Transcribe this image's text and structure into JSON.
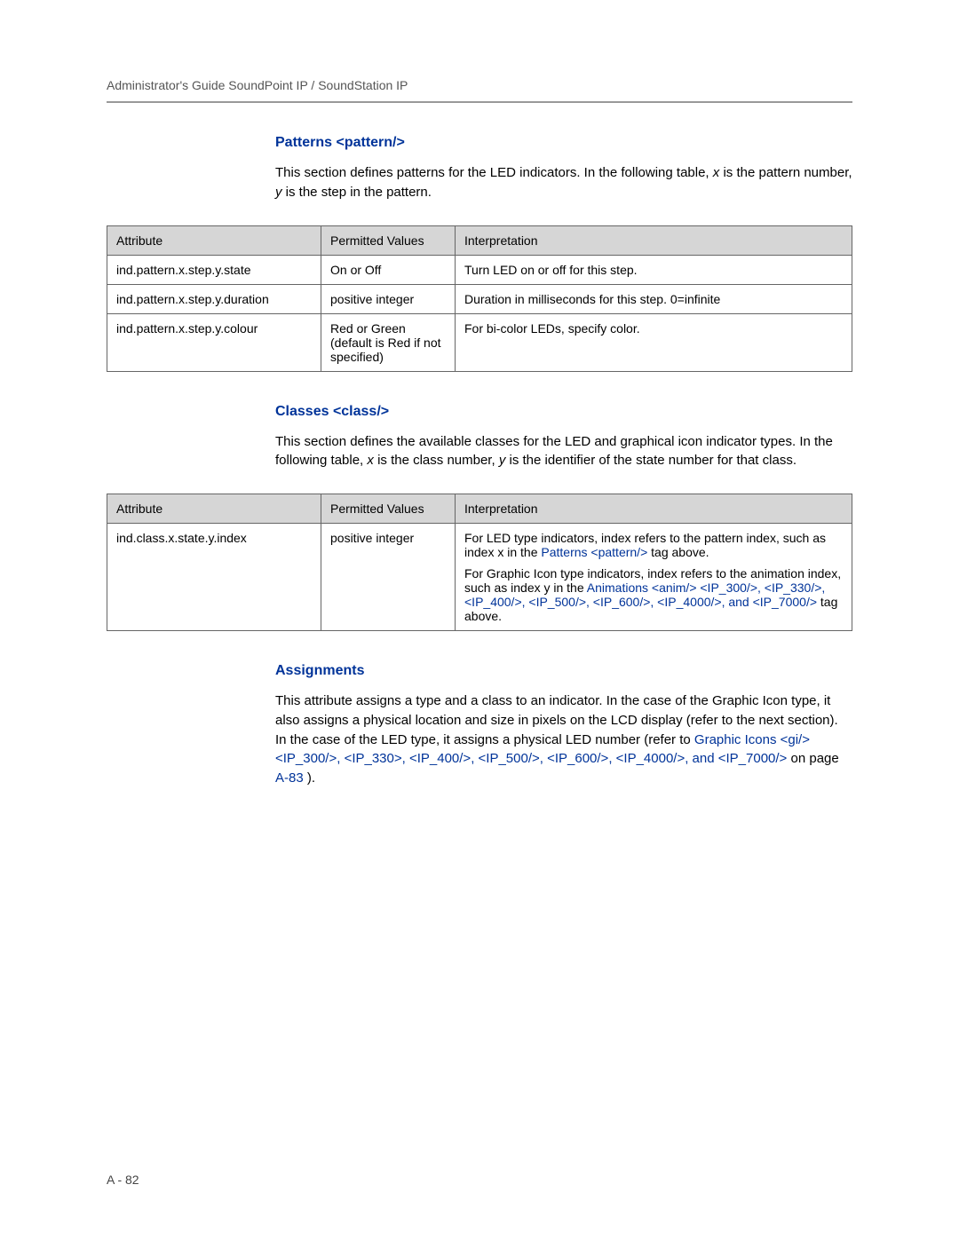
{
  "header": {
    "running_head": "Administrator's Guide SoundPoint IP / SoundStation IP"
  },
  "patterns": {
    "title": "Patterns <pattern/>",
    "intro_a": "This section defines patterns for the LED indicators. In the following table, ",
    "intro_x": "x",
    "intro_b": " is the pattern number, ",
    "intro_y": "y",
    "intro_c": " is the step in the pattern.",
    "cols": {
      "attr": "Attribute",
      "perm": "Permitted Values",
      "interp": "Interpretation"
    },
    "rows": [
      {
        "attr": "ind.pattern.x.step.y.state",
        "perm": "On or Off",
        "interp": "Turn LED on or off for this step."
      },
      {
        "attr": "ind.pattern.x.step.y.duration",
        "perm": "positive integer",
        "interp": "Duration in milliseconds for this step.  0=infinite"
      },
      {
        "attr": "ind.pattern.x.step.y.colour",
        "perm": "Red or Green (default is Red if not specified)",
        "interp": "For bi-color LEDs, specify color."
      }
    ]
  },
  "classes": {
    "title": "Classes <class/>",
    "intro_a": "This section defines the available classes for the LED and graphical icon indicator types. In the following table, ",
    "intro_x": "x",
    "intro_b": " is the class number, ",
    "intro_y": "y",
    "intro_c": " is the identifier of the state number for that class.",
    "cols": {
      "attr": "Attribute",
      "perm": "Permitted Values",
      "interp": "Interpretation"
    },
    "row": {
      "attr": "ind.class.x.state.y.index",
      "perm": "positive integer",
      "p1_a": "For LED type indicators, index refers to the pattern index, such as index x in the ",
      "p1_link": "Patterns <pattern/>",
      "p1_b": " tag above.",
      "p2_a": "For Graphic Icon type indicators, index refers to the animation index, such as index y in the ",
      "p2_link1": "Animations <anim/> <IP_300/>, <IP_330/>, <IP_400/>, <IP_500/>, <IP_600/>, <IP_4000/>, and <IP_7000/>",
      "p2_b": " tag above."
    }
  },
  "assignments": {
    "title": "Assignments",
    "text_a": "This attribute assigns a type and a class to an indicator. In the case of the Graphic Icon type, it also assigns a physical location and size in pixels on the LCD display (refer to the next section). In the case of the LED type, it assigns a physical LED number (refer to ",
    "link": "Graphic Icons <gi/> <IP_300/>, <IP_330>, <IP_400/>, <IP_500/>, <IP_600/>, <IP_4000/>, and <IP_7000/>",
    "text_b": " on page ",
    "page_ref": "A-83",
    "text_c": ")."
  },
  "footer": {
    "page": "A - 82"
  }
}
